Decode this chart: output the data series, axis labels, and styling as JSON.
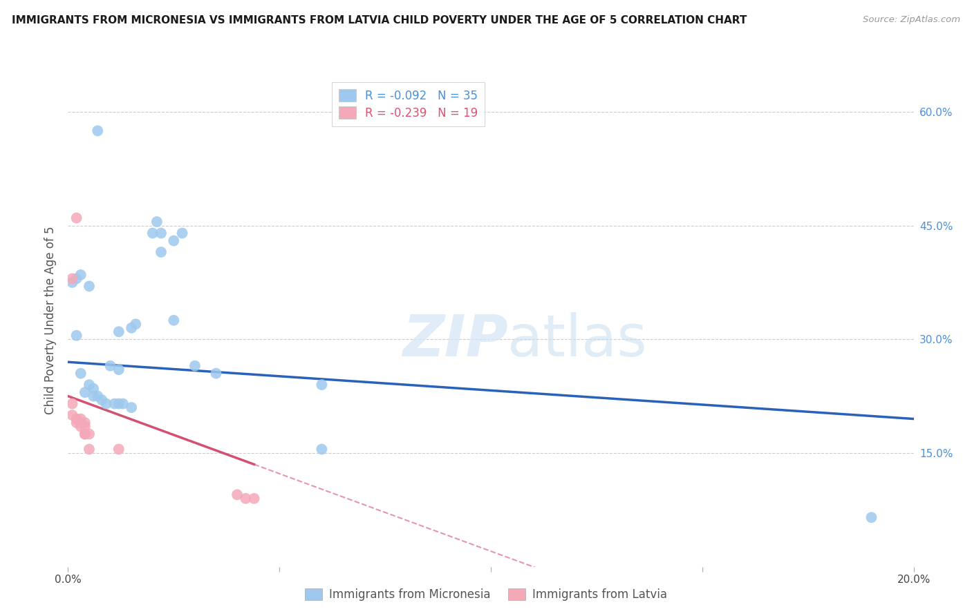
{
  "title": "IMMIGRANTS FROM MICRONESIA VS IMMIGRANTS FROM LATVIA CHILD POVERTY UNDER THE AGE OF 5 CORRELATION CHART",
  "source": "Source: ZipAtlas.com",
  "ylabel": "Child Poverty Under the Age of 5",
  "xlim": [
    0.0,
    0.2
  ],
  "ylim": [
    0.0,
    0.65
  ],
  "micronesia_color": "#9EC8EE",
  "latvia_color": "#F4A8B8",
  "micronesia_line_color": "#2962B8",
  "latvia_line_color": "#D45070",
  "R_micronesia": -0.092,
  "N_micronesia": 35,
  "R_latvia": -0.239,
  "N_latvia": 19,
  "watermark_zip": "ZIP",
  "watermark_atlas": "atlas",
  "micronesia_points": [
    [
      0.007,
      0.575
    ],
    [
      0.003,
      0.385
    ],
    [
      0.005,
      0.37
    ],
    [
      0.002,
      0.38
    ],
    [
      0.001,
      0.375
    ],
    [
      0.002,
      0.305
    ],
    [
      0.012,
      0.31
    ],
    [
      0.015,
      0.315
    ],
    [
      0.016,
      0.32
    ],
    [
      0.02,
      0.44
    ],
    [
      0.021,
      0.455
    ],
    [
      0.022,
      0.44
    ],
    [
      0.025,
      0.43
    ],
    [
      0.022,
      0.415
    ],
    [
      0.027,
      0.44
    ],
    [
      0.025,
      0.325
    ],
    [
      0.01,
      0.265
    ],
    [
      0.012,
      0.26
    ],
    [
      0.03,
      0.265
    ],
    [
      0.035,
      0.255
    ],
    [
      0.003,
      0.255
    ],
    [
      0.005,
      0.24
    ],
    [
      0.006,
      0.235
    ],
    [
      0.004,
      0.23
    ],
    [
      0.006,
      0.225
    ],
    [
      0.007,
      0.225
    ],
    [
      0.008,
      0.22
    ],
    [
      0.009,
      0.215
    ],
    [
      0.011,
      0.215
    ],
    [
      0.012,
      0.215
    ],
    [
      0.013,
      0.215
    ],
    [
      0.015,
      0.21
    ],
    [
      0.06,
      0.24
    ],
    [
      0.06,
      0.155
    ],
    [
      0.19,
      0.065
    ]
  ],
  "latvia_points": [
    [
      0.002,
      0.46
    ],
    [
      0.001,
      0.38
    ],
    [
      0.001,
      0.215
    ],
    [
      0.001,
      0.2
    ],
    [
      0.002,
      0.195
    ],
    [
      0.002,
      0.19
    ],
    [
      0.003,
      0.195
    ],
    [
      0.003,
      0.19
    ],
    [
      0.003,
      0.185
    ],
    [
      0.004,
      0.19
    ],
    [
      0.004,
      0.185
    ],
    [
      0.004,
      0.175
    ],
    [
      0.004,
      0.175
    ],
    [
      0.005,
      0.175
    ],
    [
      0.005,
      0.155
    ],
    [
      0.012,
      0.155
    ],
    [
      0.04,
      0.095
    ],
    [
      0.042,
      0.09
    ],
    [
      0.044,
      0.09
    ]
  ],
  "mic_line_x0": 0.0,
  "mic_line_y0": 0.27,
  "mic_line_x1": 0.2,
  "mic_line_y1": 0.195,
  "lat_line_x0": 0.0,
  "lat_line_y0": 0.225,
  "lat_line_x1": 0.044,
  "lat_line_y1": 0.135
}
